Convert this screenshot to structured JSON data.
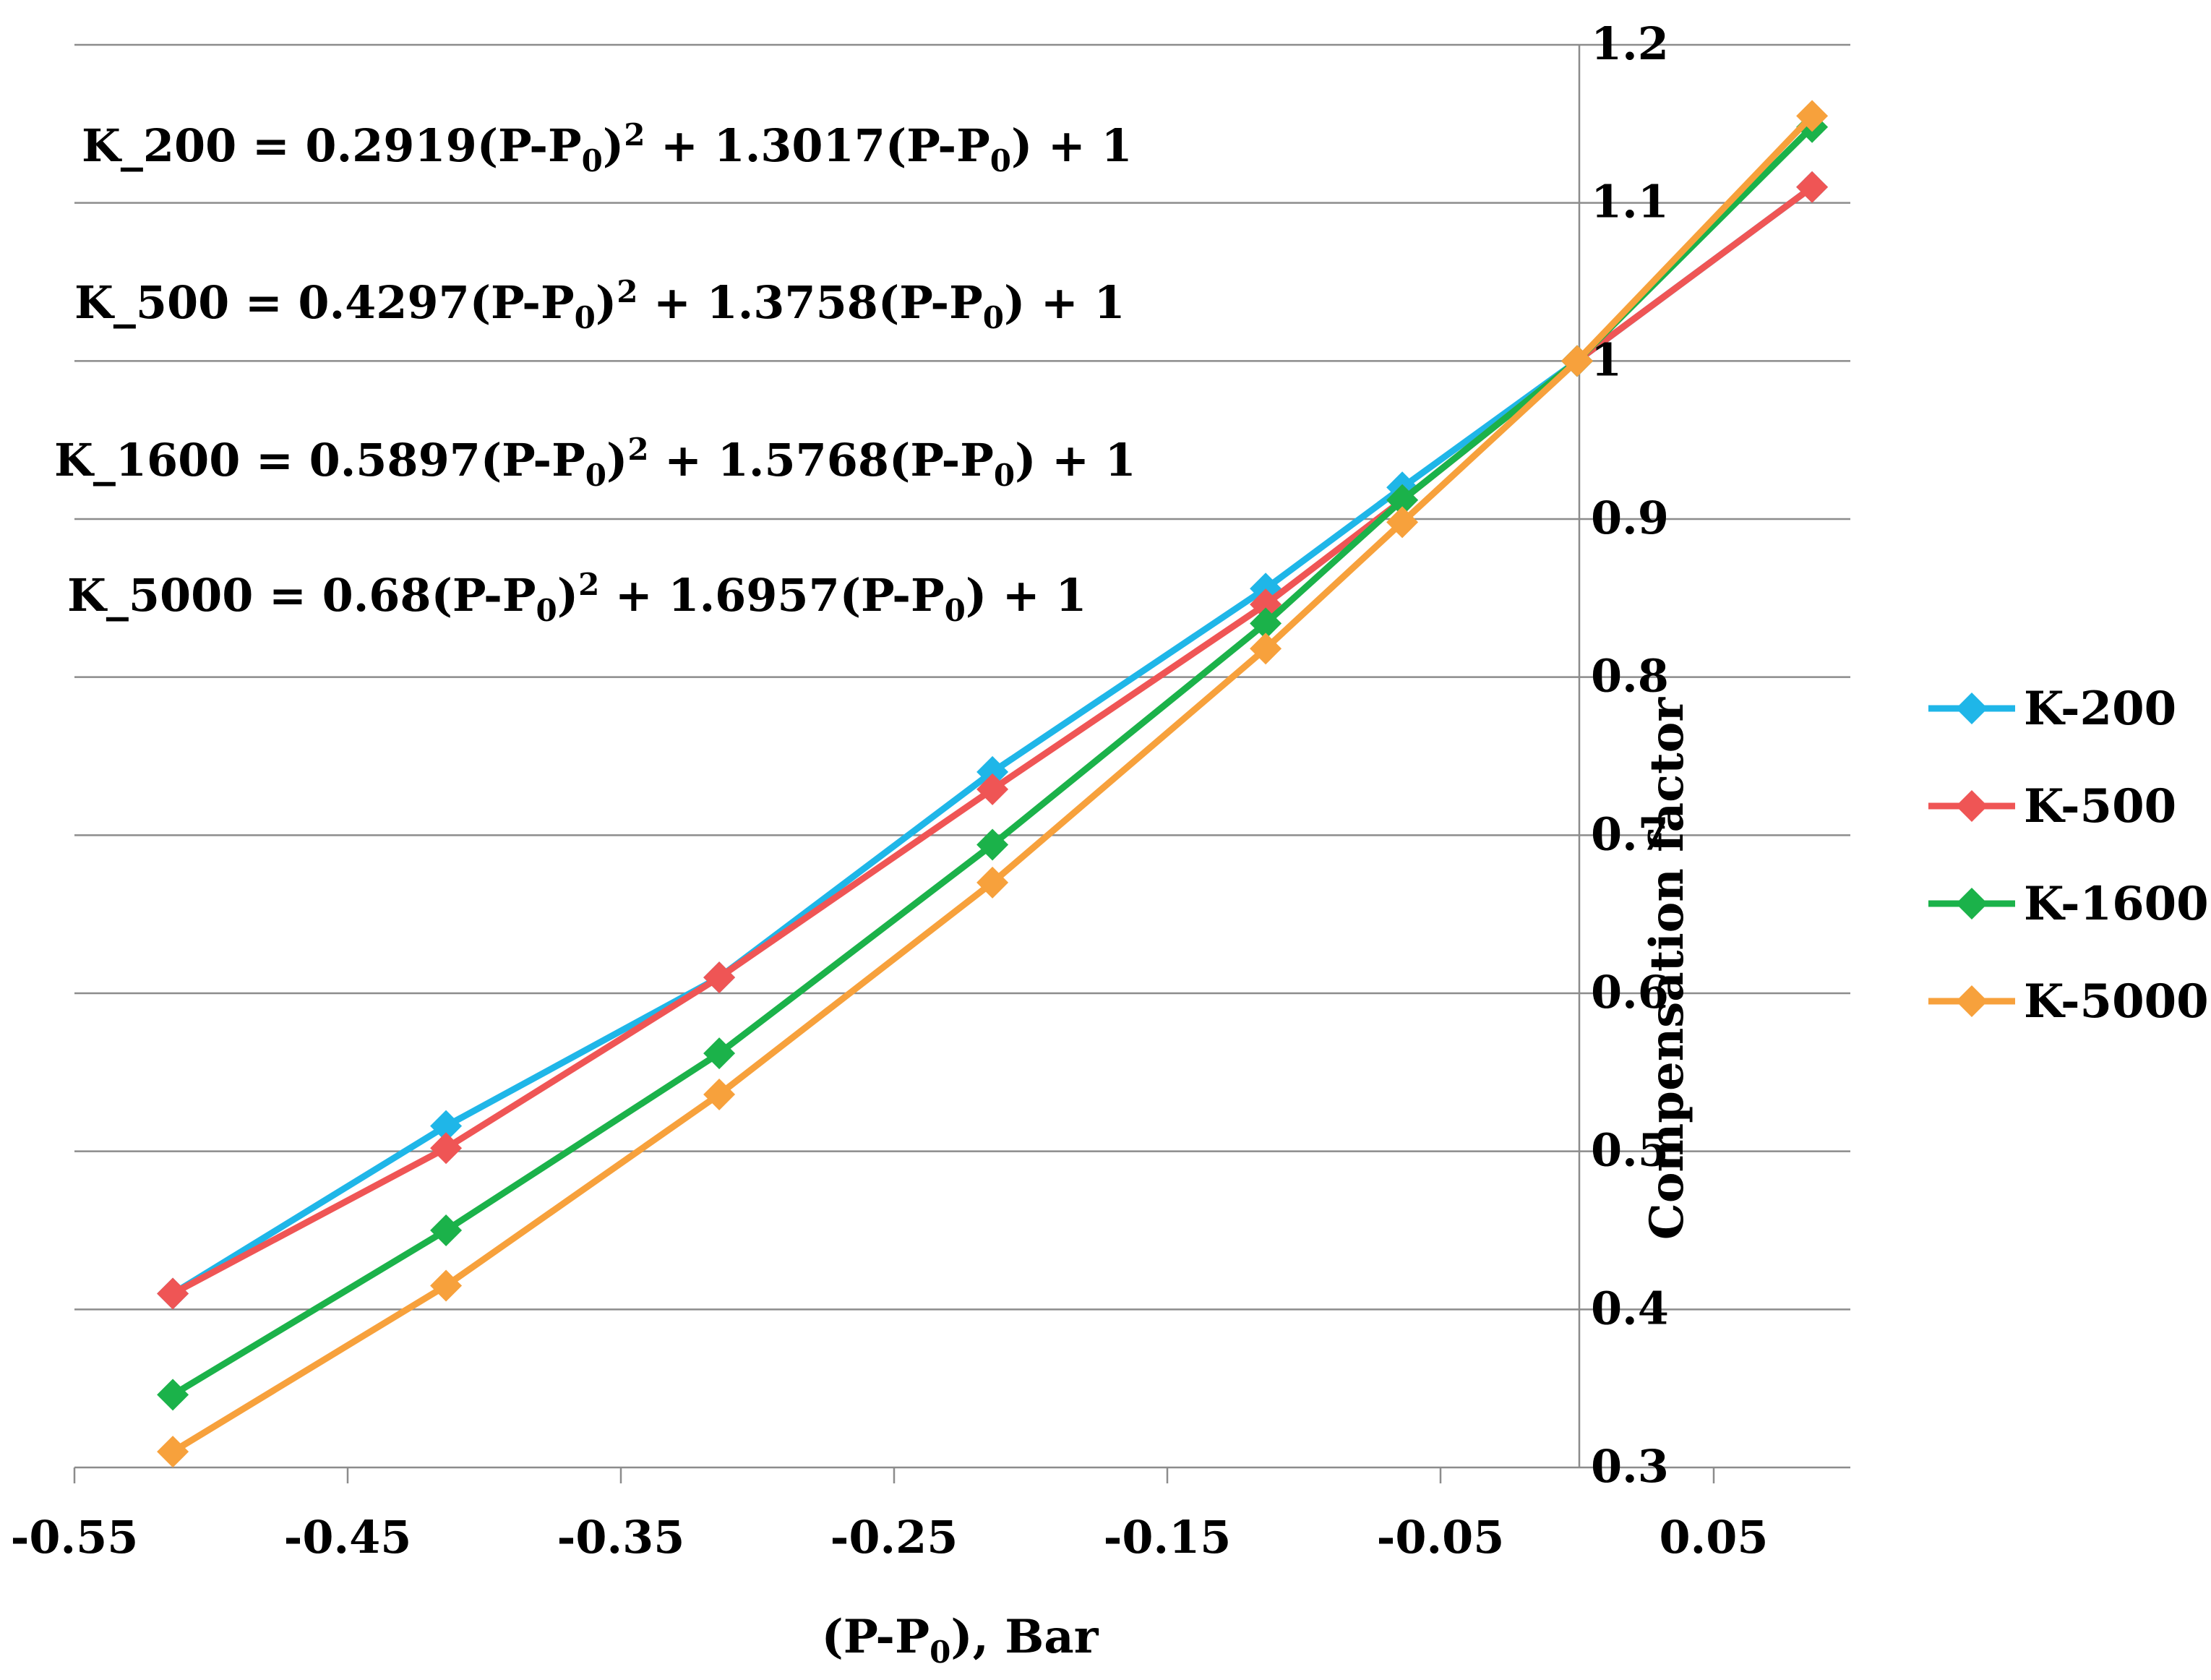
{
  "chart_data": {
    "type": "line",
    "title": "",
    "xlabel": {
      "main": "(P-P",
      "sub": "0",
      "rest": "), Bar"
    },
    "ylabel": "Compensation factor",
    "xlim": [
      -0.55,
      0.1
    ],
    "ylim": [
      0.3,
      1.2
    ],
    "grid": "horizontal",
    "legend_position": "right",
    "x_ticks": [
      -0.55,
      -0.45,
      -0.35,
      -0.25,
      -0.15,
      -0.05,
      0.05
    ],
    "x_tick_labels": [
      "-0.55",
      "-0.45",
      "-0.35",
      "-0.25",
      "-0.15",
      "-0.05",
      "0.05"
    ],
    "y_ticks": [
      0.3,
      0.4,
      0.5,
      0.6,
      0.7,
      0.8,
      0.9,
      1,
      1.1,
      1.2
    ],
    "y_tick_labels": [
      "0.3",
      "0.4",
      "0.5",
      "0.6",
      "0.7",
      "0.8",
      "0.9",
      "1",
      "1.1",
      "1.2"
    ],
    "series": [
      {
        "name": "K-200",
        "color": "#1fb6e8",
        "x": [
          -0.514,
          -0.414,
          -0.314,
          -0.214,
          -0.114,
          -0.064,
          0,
          0.086
        ],
        "y": [
          0.41,
          0.516,
          0.61,
          0.74,
          0.856,
          0.92,
          1,
          1.11
        ]
      },
      {
        "name": "K-500",
        "color": "#ef5555",
        "x": [
          -0.514,
          -0.414,
          -0.314,
          -0.214,
          -0.114,
          -0.064,
          0,
          0.086
        ],
        "y": [
          0.41,
          0.502,
          0.61,
          0.729,
          0.846,
          0.912,
          1,
          1.11
        ]
      },
      {
        "name": "K-1600",
        "color": "#1bb24a",
        "x": [
          -0.514,
          -0.414,
          -0.314,
          -0.214,
          -0.114,
          -0.064,
          0,
          0.086
        ],
        "y": [
          0.346,
          0.45,
          0.562,
          0.694,
          0.834,
          0.912,
          1,
          1.148
        ]
      },
      {
        "name": "K-5000",
        "color": "#f7a13c",
        "x": [
          -0.514,
          -0.414,
          -0.314,
          -0.214,
          -0.114,
          -0.064,
          0,
          0.086
        ],
        "y": [
          0.31,
          0.415,
          0.536,
          0.67,
          0.818,
          0.898,
          1,
          1.155
        ]
      }
    ],
    "annotations": [
      {
        "name": "K_200",
        "coef2": "0.2919",
        "coef1": "1.3017"
      },
      {
        "name": "K_500",
        "coef2": "0.4297",
        "coef1": "1.3758"
      },
      {
        "name": "K_1600",
        "coef2": "0.5897",
        "coef1": "1.5768"
      },
      {
        "name": "K_5000",
        "coef2": "0.68",
        "coef1": "1.6957"
      }
    ]
  }
}
